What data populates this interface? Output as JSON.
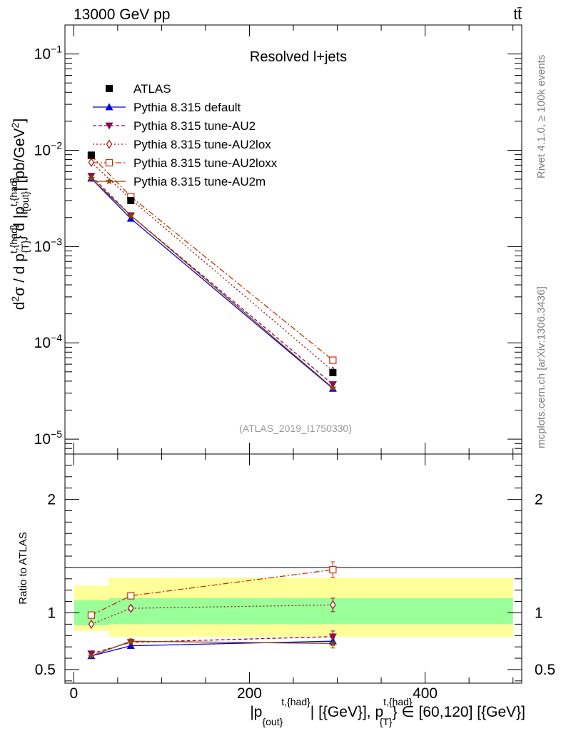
{
  "header": {
    "energy_label": "13000 GeV pp",
    "process_label": "tt̄"
  },
  "side_labels": {
    "rivet": "Rivet 4.1.0, ≥ 100k events",
    "mcplots": "mcplots.cern.ch [arXiv:1306.3436]"
  },
  "chart_data": {
    "type": "line",
    "title": "Resolved l+jets",
    "watermark": "(ATLAS_2019_I1750330)",
    "x": [
      20,
      65,
      295
    ],
    "xlim": [
      -10,
      510
    ],
    "xticks": [
      0,
      200,
      400
    ],
    "xtick_labels": [
      "0",
      "200",
      "400"
    ],
    "xlabel": "|p_{out}^{t,{had}}| [{GeV}], p_{T}^{t,{had}} ∈ [60,120] [{GeV}]",
    "xlabel_parts": {
      "p": "|p",
      "sub1": "{out}",
      "sup1": "t,{had}",
      "mid": "| [{GeV}], p",
      "sup2": "t,{had}",
      "sub2": "{T}",
      "tail": "} ∈ [60,120] [{GeV}]"
    },
    "main": {
      "yscale": "log",
      "ylim": [
        7e-06,
        0.2
      ],
      "yticks": [
        1e-05,
        0.0001,
        0.001,
        0.01,
        0.1
      ],
      "ytick_labels": [
        {
          "base": "10",
          "exp": "−5"
        },
        {
          "base": "10",
          "exp": "−4"
        },
        {
          "base": "10",
          "exp": "−3"
        },
        {
          "base": "10",
          "exp": "−2"
        },
        {
          "base": "10",
          "exp": "−1"
        }
      ],
      "ylabel_parts": {
        "a": "d",
        "a_sup": "2",
        "b": "σ / d p",
        "b_sup": "t,{had}",
        "c": "} d |p",
        "c_sup": "t,{had}",
        "d": "| [pb/GeV",
        "d_sup": "2",
        "e": "]",
        "sub_T": "{T}",
        "sub_out": "{out}"
      },
      "data": {
        "name": "ATLAS",
        "values": [
          0.0089,
          0.003,
          4.9e-05
        ],
        "rel_err_band": [
          [
            0.06,
            0.16
          ],
          [
            0.1,
            0.21
          ],
          [
            0.1,
            0.21
          ]
        ]
      },
      "series": [
        {
          "name": "Pythia 8.315 default",
          "color": "#0000dd",
          "dash": "",
          "marker": "triangle-up",
          "values": [
            0.0051,
            0.00195,
            3.35e-05
          ]
        },
        {
          "name": "Pythia 8.315 tune-AU2",
          "color": "#8b0a50",
          "dash": "5,3",
          "marker": "triangle-down",
          "values": [
            0.0054,
            0.0021,
            3.7e-05
          ]
        },
        {
          "name": "Pythia 8.315 tune-AU2lox",
          "color": "#a01414",
          "dash": "2,3",
          "marker": "diamond-open",
          "values": [
            0.0075,
            0.0031,
            5.1e-05
          ]
        },
        {
          "name": "Pythia 8.315 tune-AU2loxx",
          "color": "#c83200",
          "dash": "8,3,2,3",
          "marker": "square-open",
          "values": [
            0.0088,
            0.0033,
            6.6e-05
          ]
        },
        {
          "name": "Pythia 8.315 tune-AU2m",
          "color": "#8b4500",
          "dash": "",
          "marker": "star",
          "values": [
            0.0051,
            0.0021,
            3.4e-05
          ]
        }
      ]
    },
    "ratio": {
      "ylabel": "Ratio to ATLAS",
      "ylim": [
        0.38,
        2.4
      ],
      "yticks": [
        0.5,
        1,
        2
      ],
      "ytick_labels": [
        "0.5",
        "1",
        "2"
      ],
      "band_1sigma": [
        [
          0.89,
          1.11
        ],
        [
          0.9,
          1.13
        ]
      ],
      "band_2sigma": [
        [
          0.84,
          1.24
        ],
        [
          0.79,
          1.31
        ]
      ],
      "band_edges": [
        0,
        40,
        500
      ],
      "series_values": [
        [
          0.62,
          0.71,
          0.75
        ],
        [
          0.64,
          0.74,
          0.79
        ],
        [
          0.9,
          1.04,
          1.07
        ],
        [
          0.98,
          1.15,
          1.38
        ],
        [
          0.62,
          0.75,
          0.73
        ]
      ],
      "series_errs": [
        [
          0.01,
          0.01,
          0.03
        ],
        [
          0.01,
          0.02,
          0.05
        ],
        [
          0.01,
          0.02,
          0.06
        ],
        [
          0.01,
          0.02,
          0.07
        ],
        [
          0.01,
          0.02,
          0.04
        ]
      ]
    }
  }
}
